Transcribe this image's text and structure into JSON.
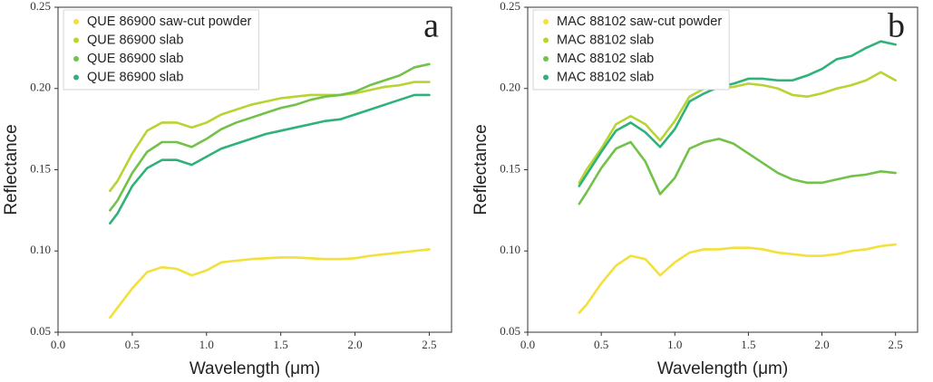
{
  "chart_data": [
    {
      "type": "line",
      "annotation": "a",
      "x_label": "Wavelength (μm)",
      "y_label": "Reflectance",
      "legend": "upper left",
      "grid": false,
      "xlim": [
        0,
        2.65
      ],
      "ylim": [
        0.05,
        0.25
      ],
      "xticks": [
        {
          "value": 0,
          "label": "0.0"
        },
        0.5,
        {
          "value": 1,
          "label": "1.0"
        },
        1.5,
        {
          "value": 2,
          "label": "2.0"
        },
        2.5
      ],
      "yticks": [
        0.05,
        {
          "value": 0.1,
          "label": "0.10"
        },
        0.15,
        {
          "value": 0.2,
          "label": "0.20"
        },
        0.25
      ],
      "x": [
        0.35,
        0.4,
        0.5,
        0.6,
        0.7,
        0.8,
        0.9,
        1.0,
        1.1,
        1.2,
        1.3,
        1.4,
        1.5,
        1.6,
        1.7,
        1.8,
        1.9,
        2.0,
        2.1,
        2.2,
        2.3,
        2.4,
        2.5
      ],
      "series": [
        {
          "name": "QUE 86900 saw-cut powder",
          "color": "#f3e03a",
          "values": [
            0.059,
            0.065,
            0.077,
            0.087,
            0.09,
            0.089,
            0.085,
            0.088,
            0.093,
            0.094,
            0.095,
            0.0955,
            0.096,
            0.096,
            0.0955,
            0.095,
            0.095,
            0.0955,
            0.097,
            0.098,
            0.099,
            0.1,
            0.101
          ]
        },
        {
          "name": "QUE 86900 slab",
          "color": "#b8d432",
          "values": [
            0.137,
            0.143,
            0.16,
            0.174,
            0.179,
            0.179,
            0.176,
            0.179,
            0.184,
            0.187,
            0.19,
            0.192,
            0.194,
            0.195,
            0.196,
            0.196,
            0.196,
            0.197,
            0.199,
            0.201,
            0.202,
            0.204,
            0.204
          ]
        },
        {
          "name": "QUE 86900 slab",
          "color": "#72c24a",
          "values": [
            0.125,
            0.131,
            0.148,
            0.161,
            0.167,
            0.167,
            0.164,
            0.169,
            0.175,
            0.179,
            0.182,
            0.185,
            0.188,
            0.19,
            0.193,
            0.195,
            0.196,
            0.198,
            0.202,
            0.205,
            0.208,
            0.213,
            0.215
          ]
        },
        {
          "name": "QUE 86900 slab",
          "color": "#2fb27a",
          "values": [
            0.117,
            0.123,
            0.14,
            0.151,
            0.156,
            0.156,
            0.153,
            0.158,
            0.163,
            0.166,
            0.169,
            0.172,
            0.174,
            0.176,
            0.178,
            0.18,
            0.181,
            0.184,
            0.187,
            0.19,
            0.193,
            0.196,
            0.196
          ]
        }
      ]
    },
    {
      "type": "line",
      "annotation": "b",
      "x_label": "Wavelength (μm)",
      "y_label": "Reflectance",
      "legend": "upper left",
      "grid": false,
      "xlim": [
        0,
        2.65
      ],
      "ylim": [
        0.05,
        0.25
      ],
      "xticks": [
        {
          "value": 0,
          "label": "0.0"
        },
        0.5,
        {
          "value": 1,
          "label": "1.0"
        },
        1.5,
        {
          "value": 2,
          "label": "2.0"
        },
        2.5
      ],
      "yticks": [
        0.05,
        {
          "value": 0.1,
          "label": "0.10"
        },
        0.15,
        {
          "value": 0.2,
          "label": "0.20"
        },
        0.25
      ],
      "x": [
        0.35,
        0.4,
        0.5,
        0.6,
        0.7,
        0.8,
        0.9,
        1.0,
        1.1,
        1.2,
        1.3,
        1.4,
        1.5,
        1.6,
        1.7,
        1.8,
        1.9,
        2.0,
        2.1,
        2.2,
        2.3,
        2.4,
        2.5
      ],
      "series": [
        {
          "name": "MAC 88102 saw-cut powder",
          "color": "#f3e03a",
          "values": [
            0.062,
            0.067,
            0.08,
            0.091,
            0.097,
            0.095,
            0.085,
            0.093,
            0.099,
            0.101,
            0.101,
            0.102,
            0.102,
            0.101,
            0.099,
            0.098,
            0.097,
            0.097,
            0.098,
            0.1,
            0.101,
            0.103,
            0.104
          ]
        },
        {
          "name": "MAC 88102 slab",
          "color": "#b8d432",
          "values": [
            0.142,
            0.15,
            0.163,
            0.178,
            0.183,
            0.178,
            0.168,
            0.18,
            0.195,
            0.2,
            0.2,
            0.201,
            0.203,
            0.202,
            0.2,
            0.196,
            0.195,
            0.197,
            0.2,
            0.202,
            0.205,
            0.21,
            0.205
          ]
        },
        {
          "name": "MAC 88102 slab",
          "color": "#72c24a",
          "values": [
            0.129,
            0.136,
            0.151,
            0.163,
            0.167,
            0.155,
            0.135,
            0.145,
            0.163,
            0.167,
            0.169,
            0.166,
            0.16,
            0.154,
            0.148,
            0.144,
            0.142,
            0.142,
            0.144,
            0.146,
            0.147,
            0.149,
            0.148
          ]
        },
        {
          "name": "MAC 88102 slab",
          "color": "#2fb27a",
          "values": [
            0.14,
            0.147,
            0.161,
            0.174,
            0.179,
            0.173,
            0.164,
            0.175,
            0.192,
            0.197,
            0.201,
            0.203,
            0.206,
            0.206,
            0.205,
            0.205,
            0.208,
            0.212,
            0.218,
            0.22,
            0.225,
            0.229,
            0.227
          ]
        }
      ]
    }
  ]
}
